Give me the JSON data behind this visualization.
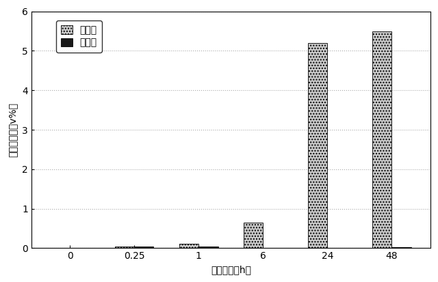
{
  "categories": [
    "0",
    "0.25",
    "1",
    "6",
    "24",
    "48"
  ],
  "live_yeast": [
    0.0,
    0.05,
    0.12,
    0.65,
    5.2,
    5.5
  ],
  "dead_yeast": [
    0.0,
    0.05,
    0.04,
    0.0,
    0.0,
    0.03
  ],
  "ylabel": "アルコール（v%）",
  "xlabel": "接触時間（h）",
  "ylim": [
    0,
    6
  ],
  "yticks": [
    0,
    1,
    2,
    3,
    4,
    5,
    6
  ],
  "legend_live": "生酵母",
  "legend_dead": "死酵母",
  "bar_width": 0.3,
  "live_color": "#c8c8c8",
  "dead_color": "#1a1a1a",
  "background_color": "#ffffff",
  "grid_color": "#aaaaaa",
  "label_fontsize": 10,
  "tick_fontsize": 10,
  "legend_fontsize": 10
}
